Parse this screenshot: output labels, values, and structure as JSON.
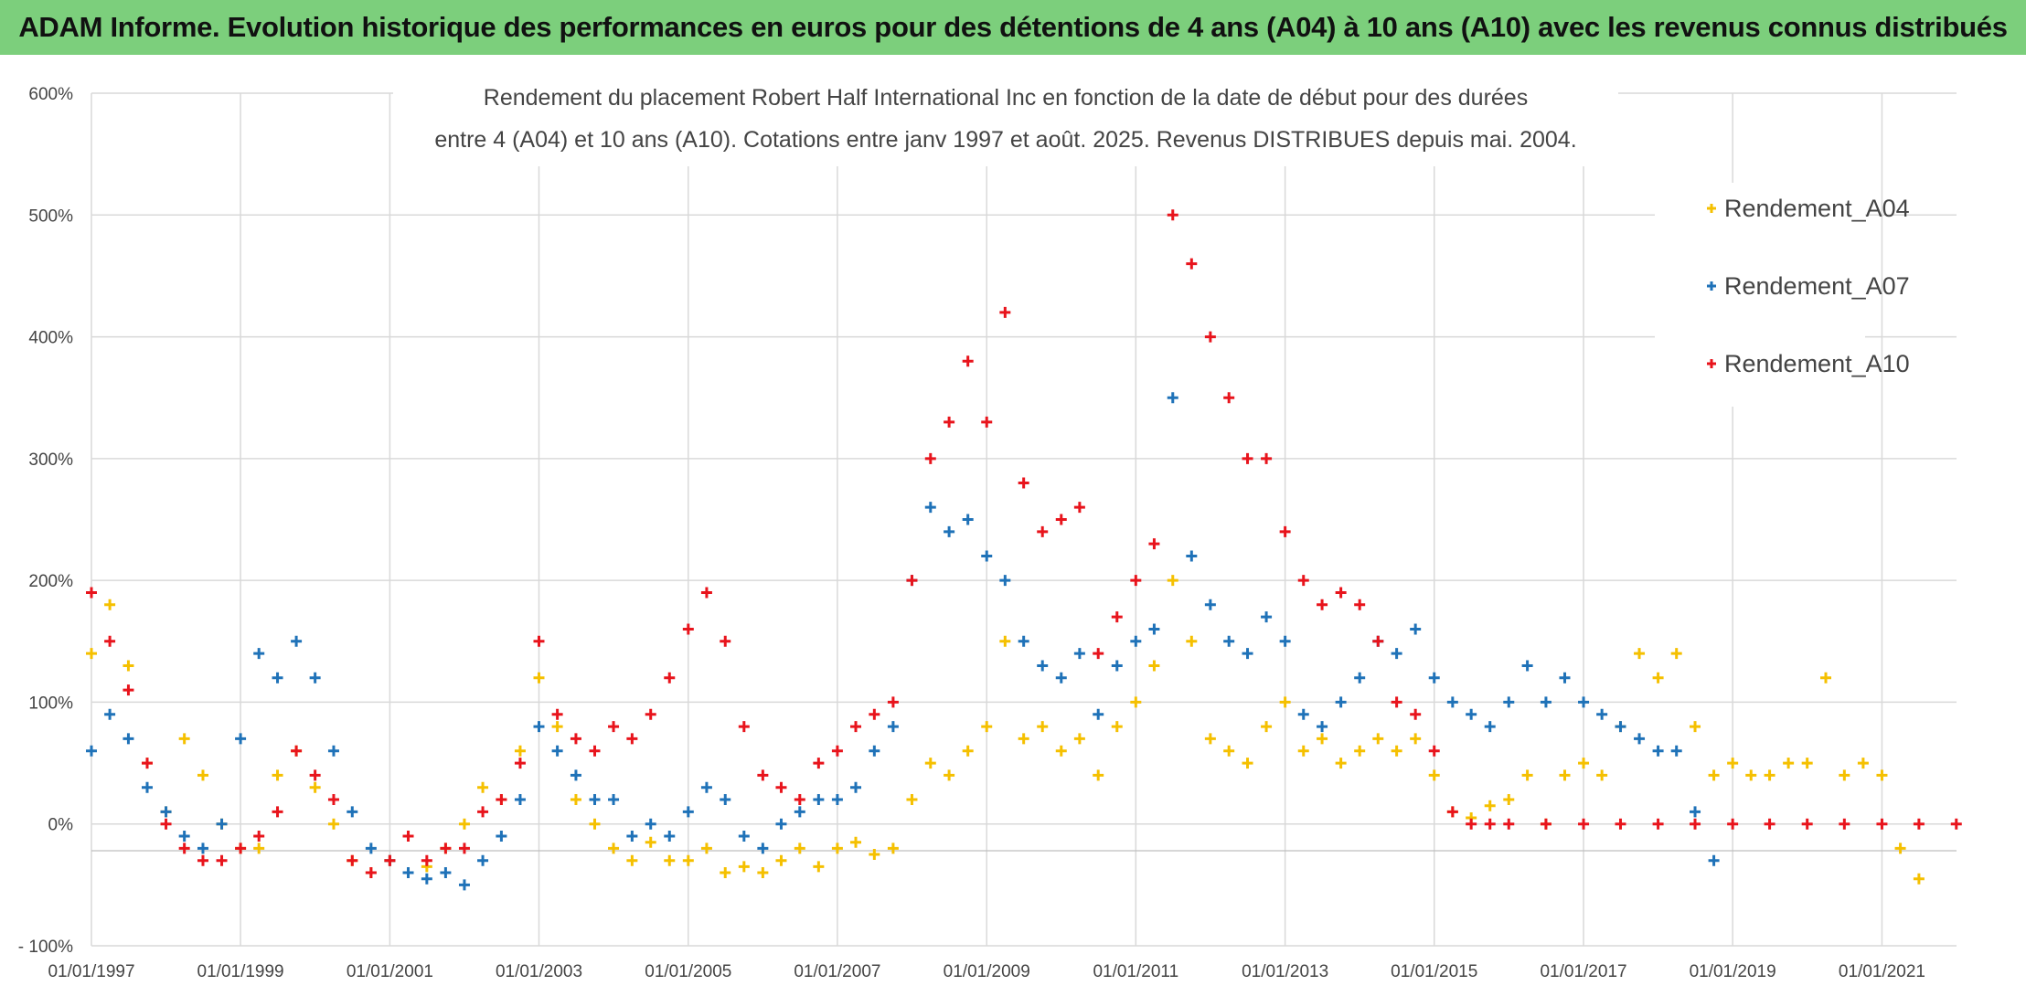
{
  "header": {
    "banner": "ADAM Informe. Evolution historique des performances en euros pour des détentions de 4 ans (A04) à 10 ans (A10) avec les revenus connus distribués"
  },
  "chart_data": {
    "type": "scatter",
    "title_lines": [
      "Rendement du placement Robert Half International Inc en fonction de la date de début pour des durées",
      "entre 4 (A04) et 10 ans (A10). Cotations entre janv 1997 et août. 2025. Revenus DISTRIBUES depuis mai. 2004."
    ],
    "xlabel": "",
    "ylabel": "",
    "x_ticks": [
      "01/01/1997",
      "01/01/1999",
      "01/01/2001",
      "01/01/2003",
      "01/01/2005",
      "01/01/2007",
      "01/01/2009",
      "01/01/2011",
      "01/01/2013",
      "01/01/2015",
      "01/01/2017",
      "01/01/2019",
      "01/01/2021"
    ],
    "y_ticks": [
      "- 100%",
      "0%",
      "100%",
      "200%",
      "300%",
      "400%",
      "500%",
      "600%"
    ],
    "xlim": [
      "1997-01-01",
      "2022-01-01"
    ],
    "ylim": [
      -100,
      600
    ],
    "grid": true,
    "legend_position": "top-right",
    "series": [
      {
        "name": "Rendement_A04",
        "color": "#f5c000",
        "points": [
          [
            "1997-01-01",
            140
          ],
          [
            "1997-04-01",
            180
          ],
          [
            "1997-07-01",
            130
          ],
          [
            "1997-10-01",
            50
          ],
          [
            "1998-01-01",
            10
          ],
          [
            "1998-04-01",
            70
          ],
          [
            "1998-07-01",
            40
          ],
          [
            "1998-10-01",
            0
          ],
          [
            "1999-01-01",
            -20
          ],
          [
            "1999-04-01",
            -20
          ],
          [
            "1999-07-01",
            40
          ],
          [
            "1999-10-01",
            60
          ],
          [
            "2000-01-01",
            30
          ],
          [
            "2000-04-01",
            0
          ],
          [
            "2000-07-01",
            -30
          ],
          [
            "2000-10-01",
            -40
          ],
          [
            "2001-01-01",
            -30
          ],
          [
            "2001-04-01",
            -10
          ],
          [
            "2001-07-01",
            -35
          ],
          [
            "2001-10-01",
            -20
          ],
          [
            "2002-01-01",
            0
          ],
          [
            "2002-04-01",
            30
          ],
          [
            "2002-07-01",
            20
          ],
          [
            "2002-10-01",
            60
          ],
          [
            "2003-01-01",
            120
          ],
          [
            "2003-04-01",
            80
          ],
          [
            "2003-07-01",
            20
          ],
          [
            "2003-10-01",
            0
          ],
          [
            "2004-01-01",
            -20
          ],
          [
            "2004-04-01",
            -30
          ],
          [
            "2004-07-01",
            -15
          ],
          [
            "2004-10-01",
            -30
          ],
          [
            "2005-01-01",
            -30
          ],
          [
            "2005-04-01",
            -20
          ],
          [
            "2005-07-01",
            -40
          ],
          [
            "2005-10-01",
            -35
          ],
          [
            "2006-01-01",
            -40
          ],
          [
            "2006-04-01",
            -30
          ],
          [
            "2006-07-01",
            -20
          ],
          [
            "2006-10-01",
            -35
          ],
          [
            "2007-01-01",
            -20
          ],
          [
            "2007-04-01",
            -15
          ],
          [
            "2007-07-01",
            -25
          ],
          [
            "2007-10-01",
            -20
          ],
          [
            "2008-01-01",
            20
          ],
          [
            "2008-04-01",
            50
          ],
          [
            "2008-07-01",
            40
          ],
          [
            "2008-10-01",
            60
          ],
          [
            "2009-01-01",
            80
          ],
          [
            "2009-04-01",
            150
          ],
          [
            "2009-07-01",
            70
          ],
          [
            "2009-10-01",
            80
          ],
          [
            "2010-01-01",
            60
          ],
          [
            "2010-04-01",
            70
          ],
          [
            "2010-07-01",
            40
          ],
          [
            "2010-10-01",
            80
          ],
          [
            "2011-01-01",
            100
          ],
          [
            "2011-04-01",
            130
          ],
          [
            "2011-07-01",
            200
          ],
          [
            "2011-10-01",
            150
          ],
          [
            "2012-01-01",
            70
          ],
          [
            "2012-04-01",
            60
          ],
          [
            "2012-07-01",
            50
          ],
          [
            "2012-10-01",
            80
          ],
          [
            "2013-01-01",
            100
          ],
          [
            "2013-04-01",
            60
          ],
          [
            "2013-07-01",
            70
          ],
          [
            "2013-10-01",
            50
          ],
          [
            "2014-01-01",
            60
          ],
          [
            "2014-04-01",
            70
          ],
          [
            "2014-07-01",
            60
          ],
          [
            "2014-10-01",
            70
          ],
          [
            "2015-01-01",
            40
          ],
          [
            "2015-04-01",
            10
          ],
          [
            "2015-07-01",
            5
          ],
          [
            "2015-10-01",
            15
          ],
          [
            "2016-01-01",
            20
          ],
          [
            "2016-04-01",
            40
          ],
          [
            "2016-07-01",
            0
          ],
          [
            "2016-10-01",
            40
          ],
          [
            "2017-01-01",
            50
          ],
          [
            "2017-04-01",
            40
          ],
          [
            "2017-07-01",
            80
          ],
          [
            "2017-10-01",
            140
          ],
          [
            "2018-01-01",
            120
          ],
          [
            "2018-04-01",
            140
          ],
          [
            "2018-07-01",
            80
          ],
          [
            "2018-10-01",
            40
          ],
          [
            "2019-01-01",
            50
          ],
          [
            "2019-04-01",
            40
          ],
          [
            "2019-07-01",
            40
          ],
          [
            "2019-10-01",
            50
          ],
          [
            "2020-01-01",
            50
          ],
          [
            "2020-04-01",
            120
          ],
          [
            "2020-07-01",
            40
          ],
          [
            "2020-10-01",
            50
          ],
          [
            "2021-01-01",
            40
          ],
          [
            "2021-04-01",
            -20
          ],
          [
            "2021-07-01",
            -45
          ]
        ]
      },
      {
        "name": "Rendement_A07",
        "color": "#1f72b8",
        "points": [
          [
            "1997-01-01",
            60
          ],
          [
            "1997-04-01",
            90
          ],
          [
            "1997-07-01",
            70
          ],
          [
            "1997-10-01",
            30
          ],
          [
            "1998-01-01",
            10
          ],
          [
            "1998-04-01",
            -10
          ],
          [
            "1998-07-01",
            -20
          ],
          [
            "1998-10-01",
            0
          ],
          [
            "1999-01-01",
            70
          ],
          [
            "1999-04-01",
            140
          ],
          [
            "1999-07-01",
            120
          ],
          [
            "1999-10-01",
            150
          ],
          [
            "2000-01-01",
            120
          ],
          [
            "2000-04-01",
            60
          ],
          [
            "2000-07-01",
            10
          ],
          [
            "2000-10-01",
            -20
          ],
          [
            "2001-01-01",
            -30
          ],
          [
            "2001-04-01",
            -40
          ],
          [
            "2001-07-01",
            -45
          ],
          [
            "2001-10-01",
            -40
          ],
          [
            "2002-01-01",
            -50
          ],
          [
            "2002-04-01",
            -30
          ],
          [
            "2002-07-01",
            -10
          ],
          [
            "2002-10-01",
            20
          ],
          [
            "2003-01-01",
            80
          ],
          [
            "2003-04-01",
            60
          ],
          [
            "2003-07-01",
            40
          ],
          [
            "2003-10-01",
            20
          ],
          [
            "2004-01-01",
            20
          ],
          [
            "2004-04-01",
            -10
          ],
          [
            "2004-07-01",
            0
          ],
          [
            "2004-10-01",
            -10
          ],
          [
            "2005-01-01",
            10
          ],
          [
            "2005-04-01",
            30
          ],
          [
            "2005-07-01",
            20
          ],
          [
            "2005-10-01",
            -10
          ],
          [
            "2006-01-01",
            -20
          ],
          [
            "2006-04-01",
            0
          ],
          [
            "2006-07-01",
            10
          ],
          [
            "2006-10-01",
            20
          ],
          [
            "2007-01-01",
            20
          ],
          [
            "2007-04-01",
            30
          ],
          [
            "2007-07-01",
            60
          ],
          [
            "2007-10-01",
            80
          ],
          [
            "2008-01-01",
            200
          ],
          [
            "2008-04-01",
            260
          ],
          [
            "2008-07-01",
            240
          ],
          [
            "2008-10-01",
            250
          ],
          [
            "2009-01-01",
            220
          ],
          [
            "2009-04-01",
            200
          ],
          [
            "2009-07-01",
            150
          ],
          [
            "2009-10-01",
            130
          ],
          [
            "2010-01-01",
            120
          ],
          [
            "2010-04-01",
            140
          ],
          [
            "2010-07-01",
            90
          ],
          [
            "2010-10-01",
            130
          ],
          [
            "2011-01-01",
            150
          ],
          [
            "2011-04-01",
            160
          ],
          [
            "2011-07-01",
            350
          ],
          [
            "2011-10-01",
            220
          ],
          [
            "2012-01-01",
            180
          ],
          [
            "2012-04-01",
            150
          ],
          [
            "2012-07-01",
            140
          ],
          [
            "2012-10-01",
            170
          ],
          [
            "2013-01-01",
            150
          ],
          [
            "2013-04-01",
            90
          ],
          [
            "2013-07-01",
            80
          ],
          [
            "2013-10-01",
            100
          ],
          [
            "2014-01-01",
            120
          ],
          [
            "2014-04-01",
            150
          ],
          [
            "2014-07-01",
            140
          ],
          [
            "2014-10-01",
            160
          ],
          [
            "2015-01-01",
            120
          ],
          [
            "2015-04-01",
            100
          ],
          [
            "2015-07-01",
            90
          ],
          [
            "2015-10-01",
            80
          ],
          [
            "2016-01-01",
            100
          ],
          [
            "2016-04-01",
            130
          ],
          [
            "2016-07-01",
            100
          ],
          [
            "2016-10-01",
            120
          ],
          [
            "2017-01-01",
            100
          ],
          [
            "2017-04-01",
            90
          ],
          [
            "2017-07-01",
            80
          ],
          [
            "2017-10-01",
            70
          ],
          [
            "2018-01-01",
            60
          ],
          [
            "2018-04-01",
            60
          ],
          [
            "2018-07-01",
            10
          ],
          [
            "2018-10-01",
            -30
          ]
        ]
      },
      {
        "name": "Rendement_A10",
        "color": "#e8141c",
        "points": [
          [
            "1997-01-01",
            190
          ],
          [
            "1997-04-01",
            150
          ],
          [
            "1997-07-01",
            110
          ],
          [
            "1997-10-01",
            50
          ],
          [
            "1998-01-01",
            0
          ],
          [
            "1998-04-01",
            -20
          ],
          [
            "1998-07-01",
            -30
          ],
          [
            "1998-10-01",
            -30
          ],
          [
            "1999-01-01",
            -20
          ],
          [
            "1999-04-01",
            -10
          ],
          [
            "1999-07-01",
            10
          ],
          [
            "1999-10-01",
            60
          ],
          [
            "2000-01-01",
            40
          ],
          [
            "2000-04-01",
            20
          ],
          [
            "2000-07-01",
            -30
          ],
          [
            "2000-10-01",
            -40
          ],
          [
            "2001-01-01",
            -30
          ],
          [
            "2001-04-01",
            -10
          ],
          [
            "2001-07-01",
            -30
          ],
          [
            "2001-10-01",
            -20
          ],
          [
            "2002-01-01",
            -20
          ],
          [
            "2002-04-01",
            10
          ],
          [
            "2002-07-01",
            20
          ],
          [
            "2002-10-01",
            50
          ],
          [
            "2003-01-01",
            150
          ],
          [
            "2003-04-01",
            90
          ],
          [
            "2003-07-01",
            70
          ],
          [
            "2003-10-01",
            60
          ],
          [
            "2004-01-01",
            80
          ],
          [
            "2004-04-01",
            70
          ],
          [
            "2004-07-01",
            90
          ],
          [
            "2004-10-01",
            120
          ],
          [
            "2005-01-01",
            160
          ],
          [
            "2005-04-01",
            190
          ],
          [
            "2005-07-01",
            150
          ],
          [
            "2005-10-01",
            80
          ],
          [
            "2006-01-01",
            40
          ],
          [
            "2006-04-01",
            30
          ],
          [
            "2006-07-01",
            20
          ],
          [
            "2006-10-01",
            50
          ],
          [
            "2007-01-01",
            60
          ],
          [
            "2007-04-01",
            80
          ],
          [
            "2007-07-01",
            90
          ],
          [
            "2007-10-01",
            100
          ],
          [
            "2008-01-01",
            200
          ],
          [
            "2008-04-01",
            300
          ],
          [
            "2008-07-01",
            330
          ],
          [
            "2008-10-01",
            380
          ],
          [
            "2009-01-01",
            330
          ],
          [
            "2009-04-01",
            420
          ],
          [
            "2009-07-01",
            280
          ],
          [
            "2009-10-01",
            240
          ],
          [
            "2010-01-01",
            250
          ],
          [
            "2010-04-01",
            260
          ],
          [
            "2010-07-01",
            140
          ],
          [
            "2010-10-01",
            170
          ],
          [
            "2011-01-01",
            200
          ],
          [
            "2011-04-01",
            230
          ],
          [
            "2011-07-01",
            500
          ],
          [
            "2011-10-01",
            460
          ],
          [
            "2012-01-01",
            400
          ],
          [
            "2012-04-01",
            350
          ],
          [
            "2012-07-01",
            300
          ],
          [
            "2012-10-01",
            300
          ],
          [
            "2013-01-01",
            240
          ],
          [
            "2013-04-01",
            200
          ],
          [
            "2013-07-01",
            180
          ],
          [
            "2013-10-01",
            190
          ],
          [
            "2014-01-01",
            180
          ],
          [
            "2014-04-01",
            150
          ],
          [
            "2014-07-01",
            100
          ],
          [
            "2014-10-01",
            90
          ],
          [
            "2015-01-01",
            60
          ],
          [
            "2015-04-01",
            10
          ],
          [
            "2015-07-01",
            0
          ],
          [
            "2015-10-01",
            0
          ],
          [
            "2016-01-01",
            0
          ],
          [
            "2016-07-01",
            0
          ],
          [
            "2017-01-01",
            0
          ],
          [
            "2017-07-01",
            0
          ],
          [
            "2018-01-01",
            0
          ],
          [
            "2018-07-01",
            0
          ],
          [
            "2019-01-01",
            0
          ],
          [
            "2019-07-01",
            0
          ],
          [
            "2020-01-01",
            0
          ],
          [
            "2020-07-01",
            0
          ],
          [
            "2021-01-01",
            0
          ],
          [
            "2021-07-01",
            0
          ],
          [
            "2021-12-31",
            0
          ]
        ]
      }
    ]
  }
}
